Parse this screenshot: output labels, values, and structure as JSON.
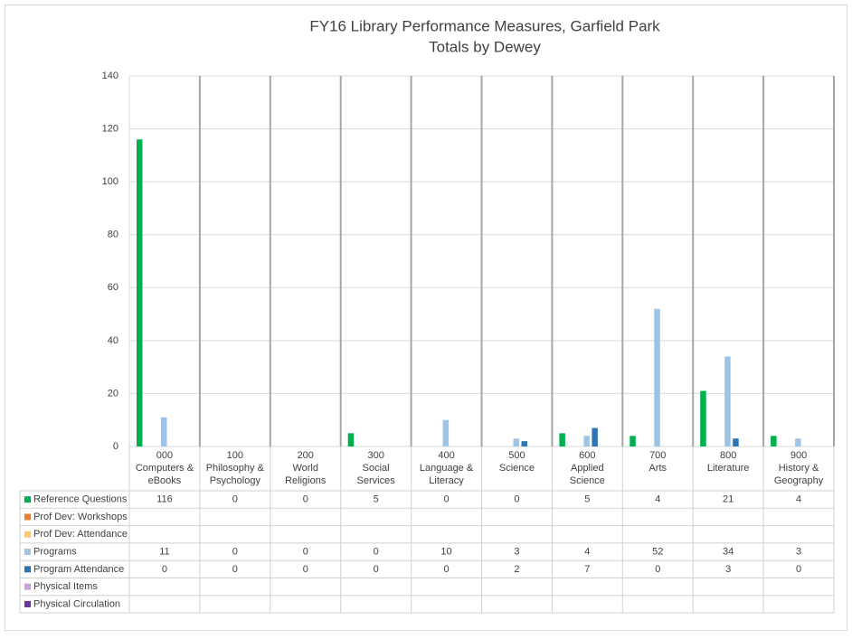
{
  "chart_data": {
    "type": "bar",
    "title": "FY16 Library Performance Measures, Garfield Park",
    "subtitle": "Totals by Dewey",
    "categories": [
      "000\nComputers & eBooks",
      "100\nPhilosophy & Psychology",
      "200\nWorld Religions",
      "300\nSocial Services",
      "400\nLanguage & Literacy",
      "500\nScience",
      "600\nApplied Science",
      "700\nArts",
      "800\nLiterature",
      "900\nHistory & Geography"
    ],
    "series": [
      {
        "name": "Reference Questions",
        "color": "#00b050",
        "values": [
          116,
          0,
          0,
          5,
          0,
          0,
          5,
          4,
          21,
          4
        ]
      },
      {
        "name": "Prof Dev: Workshops",
        "color": "#ed7d31",
        "values": [
          null,
          null,
          null,
          null,
          null,
          null,
          null,
          null,
          null,
          null
        ]
      },
      {
        "name": "Prof Dev: Attendance",
        "color": "#ffc869",
        "values": [
          null,
          null,
          null,
          null,
          null,
          null,
          null,
          null,
          null,
          null
        ]
      },
      {
        "name": "Programs",
        "color": "#9dc3e6",
        "values": [
          11,
          0,
          0,
          0,
          10,
          3,
          4,
          52,
          34,
          3
        ]
      },
      {
        "name": "Program Attendance",
        "color": "#2e75b6",
        "values": [
          0,
          0,
          0,
          0,
          0,
          2,
          7,
          0,
          3,
          0
        ]
      },
      {
        "name": "Physical Items",
        "color": "#c9a0dc",
        "values": [
          null,
          null,
          null,
          null,
          null,
          null,
          null,
          null,
          null,
          null
        ]
      },
      {
        "name": "Physical Circulation",
        "color": "#7030a0",
        "values": [
          null,
          null,
          null,
          null,
          null,
          null,
          null,
          null,
          null,
          null
        ]
      }
    ],
    "ylim": [
      0,
      140
    ],
    "yticks": [
      0,
      20,
      40,
      60,
      80,
      100,
      120,
      140
    ],
    "grid": true
  }
}
